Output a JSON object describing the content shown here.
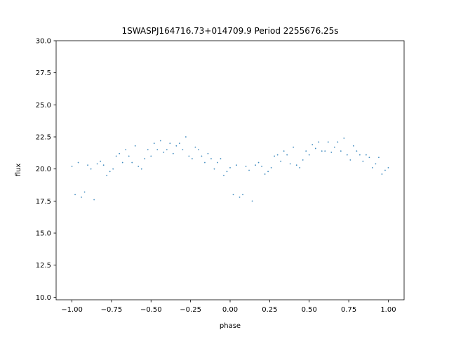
{
  "chart_data": {
    "type": "scatter",
    "title": "1SWASPJ164716.73+014709.9 Period 2255676.25s",
    "xlabel": "phase",
    "ylabel": "flux",
    "xlim": [
      -1.1,
      1.1
    ],
    "ylim": [
      9.8,
      30.0
    ],
    "x_ticks": [
      -1.0,
      -0.75,
      -0.5,
      -0.25,
      0.0,
      0.25,
      0.5,
      0.75,
      1.0
    ],
    "x_tick_labels": [
      "−1.00",
      "−0.75",
      "−0.50",
      "−0.25",
      "0.00",
      "0.25",
      "0.50",
      "0.75",
      "1.00"
    ],
    "y_ticks": [
      10.0,
      12.5,
      15.0,
      17.5,
      20.0,
      22.5,
      25.0,
      27.5,
      30.0
    ],
    "y_tick_labels": [
      "10.0",
      "12.5",
      "15.0",
      "17.5",
      "20.0",
      "22.5",
      "25.0",
      "27.5",
      "30.0"
    ],
    "grid": false,
    "point_color": "#1f77b4",
    "series": [
      {
        "x": [
          -1.0,
          -0.98,
          -0.96,
          -0.94,
          -0.92,
          -0.9,
          -0.88,
          -0.86,
          -0.84,
          -0.82,
          -0.8,
          -0.78,
          -0.76,
          -0.74,
          -0.72,
          -0.7,
          -0.68,
          -0.66,
          -0.64,
          -0.62,
          -0.6,
          -0.58,
          -0.56,
          -0.54,
          -0.52,
          -0.5,
          -0.48,
          -0.46,
          -0.44,
          -0.42,
          -0.4,
          -0.38,
          -0.36,
          -0.34,
          -0.32,
          -0.3,
          -0.28,
          -0.26,
          -0.24,
          -0.22,
          -0.2,
          -0.18,
          -0.16,
          -0.14,
          -0.12,
          -0.1,
          -0.08,
          -0.06,
          -0.04,
          -0.02,
          0.0,
          0.02,
          0.04,
          0.06,
          0.08,
          0.1,
          0.12,
          0.14,
          0.16,
          0.18,
          0.2,
          0.22,
          0.24,
          0.26,
          0.28,
          0.3,
          0.32,
          0.34,
          0.36,
          0.38,
          0.4,
          0.42,
          0.44,
          0.46,
          0.48,
          0.5,
          0.52,
          0.54,
          0.56,
          0.58,
          0.6,
          0.62,
          0.64,
          0.66,
          0.68,
          0.7,
          0.72,
          0.74,
          0.76,
          0.78,
          0.8,
          0.82,
          0.84,
          0.86,
          0.88,
          0.9,
          0.92,
          0.94,
          0.96,
          0.98,
          1.0
        ],
        "y": [
          20.2,
          18.0,
          20.5,
          17.8,
          18.2,
          20.3,
          20.0,
          17.6,
          20.4,
          20.6,
          20.3,
          19.5,
          19.8,
          20.0,
          21.0,
          21.2,
          20.5,
          21.5,
          21.0,
          20.5,
          21.8,
          20.2,
          20.0,
          20.8,
          21.5,
          21.0,
          22.0,
          21.5,
          22.2,
          21.3,
          21.5,
          22.0,
          21.2,
          21.8,
          22.0,
          21.5,
          22.5,
          21.0,
          20.8,
          21.7,
          21.5,
          21.0,
          20.5,
          21.2,
          20.8,
          20.0,
          20.5,
          20.8,
          19.5,
          19.8,
          20.1,
          18.0,
          20.3,
          17.8,
          18.0,
          20.2,
          19.9,
          17.5,
          20.3,
          20.5,
          20.2,
          19.6,
          19.8,
          20.1,
          21.0,
          21.1,
          20.6,
          21.4,
          21.1,
          20.4,
          21.7,
          20.3,
          20.1,
          20.7,
          21.4,
          21.1,
          21.9,
          21.6,
          22.1,
          21.4,
          21.4,
          22.1,
          21.3,
          21.7,
          22.1,
          21.4,
          22.4,
          21.1,
          20.7,
          21.8,
          21.4,
          21.1,
          20.6,
          21.1,
          20.9,
          20.1,
          20.4,
          20.9,
          19.6,
          19.9,
          20.1
        ]
      }
    ]
  }
}
